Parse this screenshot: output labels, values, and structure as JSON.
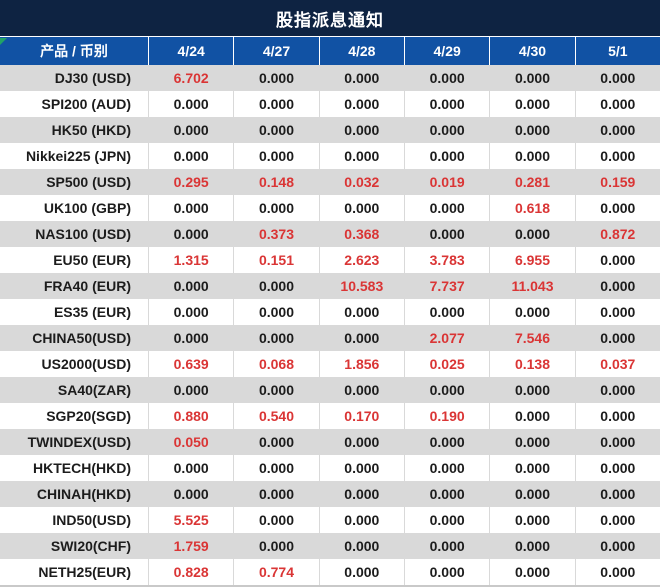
{
  "title": "股指派息通知",
  "colors": {
    "title_bg": "#0e2342",
    "header_bg": "#1152a4",
    "header_text": "#ffffff",
    "row_alt_bg": "#d9d9d9",
    "row_bg": "#ffffff",
    "value_black": "#1c1c1c",
    "value_red": "#da3535",
    "corner_green": "#21a366"
  },
  "table": {
    "columns": [
      "产品 / 币别",
      "4/24",
      "4/27",
      "4/28",
      "4/29",
      "4/30",
      "5/1"
    ],
    "rows": [
      {
        "product": "DJ30 (USD)",
        "values": [
          "6.702",
          "0.000",
          "0.000",
          "0.000",
          "0.000",
          "0.000"
        ]
      },
      {
        "product": "SPI200 (AUD)",
        "values": [
          "0.000",
          "0.000",
          "0.000",
          "0.000",
          "0.000",
          "0.000"
        ]
      },
      {
        "product": "HK50 (HKD)",
        "values": [
          "0.000",
          "0.000",
          "0.000",
          "0.000",
          "0.000",
          "0.000"
        ]
      },
      {
        "product": "Nikkei225 (JPN)",
        "values": [
          "0.000",
          "0.000",
          "0.000",
          "0.000",
          "0.000",
          "0.000"
        ]
      },
      {
        "product": "SP500 (USD)",
        "values": [
          "0.295",
          "0.148",
          "0.032",
          "0.019",
          "0.281",
          "0.159"
        ]
      },
      {
        "product": "UK100 (GBP)",
        "values": [
          "0.000",
          "0.000",
          "0.000",
          "0.000",
          "0.618",
          "0.000"
        ]
      },
      {
        "product": "NAS100 (USD)",
        "values": [
          "0.000",
          "0.373",
          "0.368",
          "0.000",
          "0.000",
          "0.872"
        ]
      },
      {
        "product": "EU50 (EUR)",
        "values": [
          "1.315",
          "0.151",
          "2.623",
          "3.783",
          "6.955",
          "0.000"
        ]
      },
      {
        "product": "FRA40 (EUR)",
        "values": [
          "0.000",
          "0.000",
          "10.583",
          "7.737",
          "11.043",
          "0.000"
        ]
      },
      {
        "product": "ES35 (EUR)",
        "values": [
          "0.000",
          "0.000",
          "0.000",
          "0.000",
          "0.000",
          "0.000"
        ]
      },
      {
        "product": "CHINA50(USD)",
        "values": [
          "0.000",
          "0.000",
          "0.000",
          "2.077",
          "7.546",
          "0.000"
        ]
      },
      {
        "product": "US2000(USD)",
        "values": [
          "0.639",
          "0.068",
          "1.856",
          "0.025",
          "0.138",
          "0.037"
        ]
      },
      {
        "product": "SA40(ZAR)",
        "values": [
          "0.000",
          "0.000",
          "0.000",
          "0.000",
          "0.000",
          "0.000"
        ]
      },
      {
        "product": "SGP20(SGD)",
        "values": [
          "0.880",
          "0.540",
          "0.170",
          "0.190",
          "0.000",
          "0.000"
        ]
      },
      {
        "product": "TWINDEX(USD)",
        "values": [
          "0.050",
          "0.000",
          "0.000",
          "0.000",
          "0.000",
          "0.000"
        ]
      },
      {
        "product": "HKTECH(HKD)",
        "values": [
          "0.000",
          "0.000",
          "0.000",
          "0.000",
          "0.000",
          "0.000"
        ]
      },
      {
        "product": "CHINAH(HKD)",
        "values": [
          "0.000",
          "0.000",
          "0.000",
          "0.000",
          "0.000",
          "0.000"
        ]
      },
      {
        "product": "IND50(USD)",
        "values": [
          "5.525",
          "0.000",
          "0.000",
          "0.000",
          "0.000",
          "0.000"
        ]
      },
      {
        "product": "SWI20(CHF)",
        "values": [
          "1.759",
          "0.000",
          "0.000",
          "0.000",
          "0.000",
          "0.000"
        ]
      },
      {
        "product": "NETH25(EUR)",
        "values": [
          "0.828",
          "0.774",
          "0.000",
          "0.000",
          "0.000",
          "0.000"
        ]
      }
    ]
  }
}
